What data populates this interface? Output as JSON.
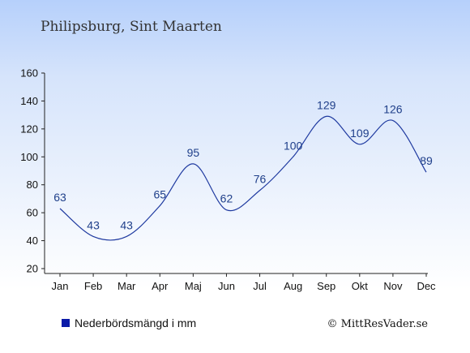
{
  "title": "Philipsburg, Sint Maarten",
  "legend_label": "Nederbördsmängd i mm",
  "copyright": "© MittResVader.se",
  "colors": {
    "line": "#1f3aa0",
    "legend_marker": "#0a1aa8",
    "axis": "#222222"
  },
  "chart_data": {
    "type": "line",
    "categories": [
      "Jan",
      "Feb",
      "Mar",
      "Apr",
      "Maj",
      "Jun",
      "Jul",
      "Aug",
      "Sep",
      "Okt",
      "Nov",
      "Dec"
    ],
    "series": [
      {
        "name": "Nederbördsmängd i mm",
        "values": [
          63,
          43,
          43,
          65,
          95,
          62,
          76,
          100,
          129,
          109,
          126,
          89
        ]
      }
    ],
    "ylim": [
      20,
      160
    ],
    "yticks": [
      20,
      40,
      60,
      80,
      100,
      120,
      140,
      160
    ],
    "grid": false,
    "legend": "bottom-left",
    "title": "Philipsburg, Sint Maarten",
    "xlabel": "",
    "ylabel": ""
  }
}
